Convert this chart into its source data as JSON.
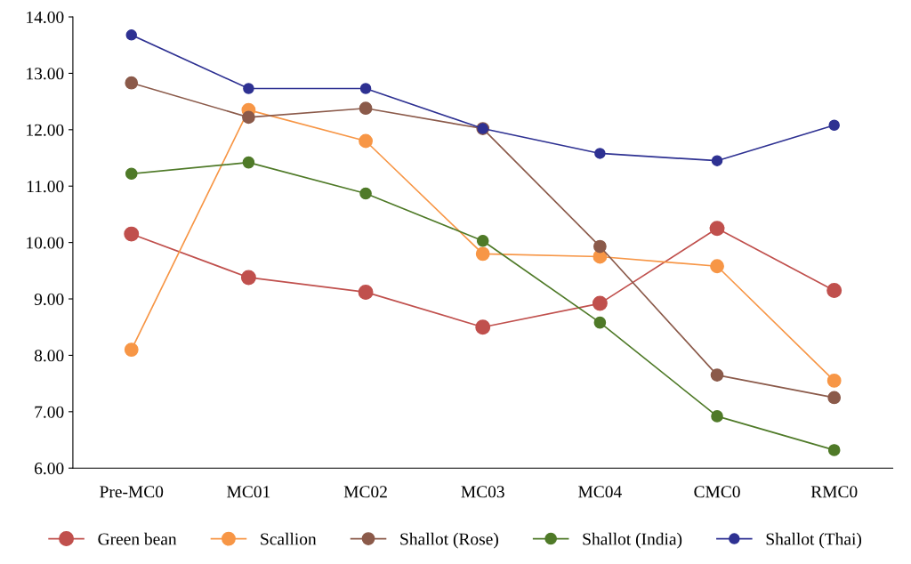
{
  "chart_data": {
    "type": "line",
    "categories": [
      "Pre-MC0",
      "MC01",
      "MC02",
      "MC03",
      "MC04",
      "CMC0",
      "RMC0"
    ],
    "series": [
      {
        "name": "Green bean",
        "color": "#c0504d",
        "values": [
          10.15,
          9.38,
          9.12,
          8.5,
          8.92,
          10.25,
          9.15
        ]
      },
      {
        "name": "Scallion",
        "color": "#f79646",
        "values": [
          8.1,
          12.35,
          11.8,
          9.8,
          9.75,
          9.58,
          7.55
        ]
      },
      {
        "name": "Shallot (Rose)",
        "color": "#8b5a4a",
        "values": [
          12.83,
          12.22,
          12.38,
          12.02,
          9.93,
          7.65,
          7.25
        ]
      },
      {
        "name": "Shallot (India)",
        "color": "#4f7a28",
        "values": [
          11.22,
          11.42,
          10.87,
          10.03,
          8.58,
          6.92,
          6.32
        ]
      },
      {
        "name": "Shallot (Thai)",
        "color": "#2e3192",
        "values": [
          13.68,
          12.73,
          12.73,
          12.02,
          11.58,
          11.45,
          12.08
        ]
      }
    ],
    "ylim": [
      6,
      14
    ],
    "yticks": [
      {
        "value": 6,
        "label": "6.00"
      },
      {
        "value": 7,
        "label": "7.00"
      },
      {
        "value": 8,
        "label": "8.00"
      },
      {
        "value": 9,
        "label": "9.00"
      },
      {
        "value": 10,
        "label": "10.00"
      },
      {
        "value": 11,
        "label": "11.00"
      },
      {
        "value": 12,
        "label": "12.00"
      },
      {
        "value": 13,
        "label": "13.00"
      },
      {
        "value": 14,
        "label": "14.00"
      }
    ],
    "grid": false,
    "legend": "bottom",
    "marker": "circle",
    "line_style": "solid"
  }
}
